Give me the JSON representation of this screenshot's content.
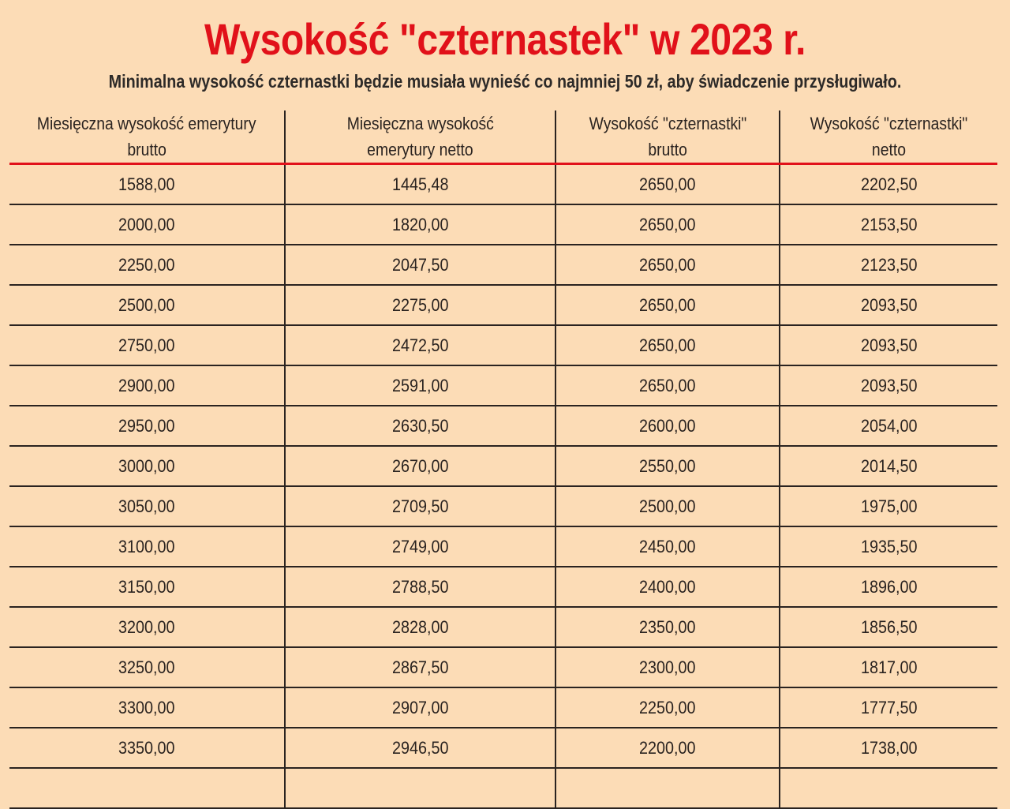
{
  "title": "Wysokość \"czternastek\" w 2023 r.",
  "subtitle": "Minimalna wysokość czternastki będzie musiała wynieść co najmniej 50 zł, aby świadczenie przysługiwało.",
  "colors": {
    "background": "#fcdcb6",
    "title": "#e1111a",
    "header_rule": "#e1111a"
  },
  "table": {
    "headers": [
      [
        "Miesięczna wysokość emerytury",
        "brutto"
      ],
      [
        "Miesięczna wysokość",
        "emerytury netto"
      ],
      [
        "Wysokość \"czternastki\"",
        "brutto"
      ],
      [
        "Wysokość \"czternastki\"",
        "netto"
      ]
    ],
    "rows": [
      [
        "1588,00",
        "1445,48",
        "2650,00",
        "2202,50"
      ],
      [
        "2000,00",
        "1820,00",
        "2650,00",
        "2153,50"
      ],
      [
        "2250,00",
        "2047,50",
        "2650,00",
        "2123,50"
      ],
      [
        "2500,00",
        "2275,00",
        "2650,00",
        "2093,50"
      ],
      [
        "2750,00",
        "2472,50",
        "2650,00",
        "2093,50"
      ],
      [
        "2900,00",
        "2591,00",
        "2650,00",
        "2093,50"
      ],
      [
        "2950,00",
        "2630,50",
        "2600,00",
        "2054,00"
      ],
      [
        "3000,00",
        "2670,00",
        "2550,00",
        "2014,50"
      ],
      [
        "3050,00",
        "2709,50",
        "2500,00",
        "1975,00"
      ],
      [
        "3100,00",
        "2749,00",
        "2450,00",
        "1935,50"
      ],
      [
        "3150,00",
        "2788,50",
        "2400,00",
        "1896,00"
      ],
      [
        "3200,00",
        "2828,00",
        "2350,00",
        "1856,50"
      ],
      [
        "3250,00",
        "2867,50",
        "2300,00",
        "1817,00"
      ],
      [
        "3300,00",
        "2907,00",
        "2250,00",
        "1777,50"
      ],
      [
        "3350,00",
        "2946,50",
        "2200,00",
        "1738,00"
      ]
    ]
  }
}
